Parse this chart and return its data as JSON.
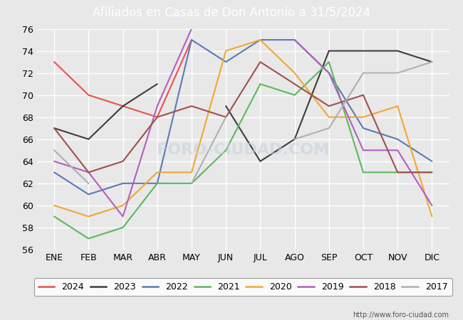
{
  "title": "Afiliados en Casas de Don Antonio a 31/5/2024",
  "title_color": "white",
  "title_bg_color": "#4169b8",
  "months": [
    "ENE",
    "FEB",
    "MAR",
    "ABR",
    "MAY",
    "JUN",
    "JUL",
    "AGO",
    "SEP",
    "OCT",
    "NOV",
    "DIC"
  ],
  "ylim": [
    56,
    76
  ],
  "yticks": [
    56,
    58,
    60,
    62,
    64,
    66,
    68,
    70,
    72,
    74,
    76
  ],
  "series": {
    "2024": {
      "color": "#e8534a",
      "data": [
        73,
        70,
        69,
        68,
        75,
        null,
        null,
        null,
        null,
        null,
        null,
        null
      ]
    },
    "2023": {
      "color": "#3d3d3d",
      "data": [
        67,
        66,
        69,
        71,
        null,
        69,
        64,
        66,
        74,
        74,
        74,
        73
      ]
    },
    "2022": {
      "color": "#5b7ab5",
      "data": [
        63,
        61,
        62,
        62,
        75,
        73,
        75,
        75,
        72,
        67,
        66,
        64
      ]
    },
    "2021": {
      "color": "#5cb85c",
      "data": [
        59,
        57,
        58,
        62,
        62,
        65,
        71,
        70,
        73,
        63,
        63,
        63
      ]
    },
    "2020": {
      "color": "#f0a830",
      "data": [
        60,
        59,
        60,
        63,
        63,
        74,
        75,
        72,
        68,
        68,
        69,
        59
      ]
    },
    "2019": {
      "color": "#b060c0",
      "data": [
        64,
        63,
        59,
        69,
        76,
        null,
        null,
        75,
        72,
        65,
        65,
        60
      ]
    },
    "2018": {
      "color": "#a05050",
      "data": [
        67,
        63,
        64,
        68,
        69,
        68,
        73,
        71,
        69,
        70,
        63,
        63
      ]
    },
    "2017": {
      "color": "#b0b0b0",
      "data": [
        65,
        62,
        null,
        null,
        62,
        68,
        null,
        66,
        67,
        72,
        72,
        73
      ]
    }
  },
  "legend_order": [
    "2024",
    "2023",
    "2022",
    "2021",
    "2020",
    "2019",
    "2018",
    "2017"
  ],
  "watermark": "FORO-CIUDAD.COM",
  "url": "http://www.foro-ciudad.com",
  "plot_bg_color": "#e8e8e8",
  "fig_bg_color": "#e8e8e8",
  "grid_color": "white"
}
